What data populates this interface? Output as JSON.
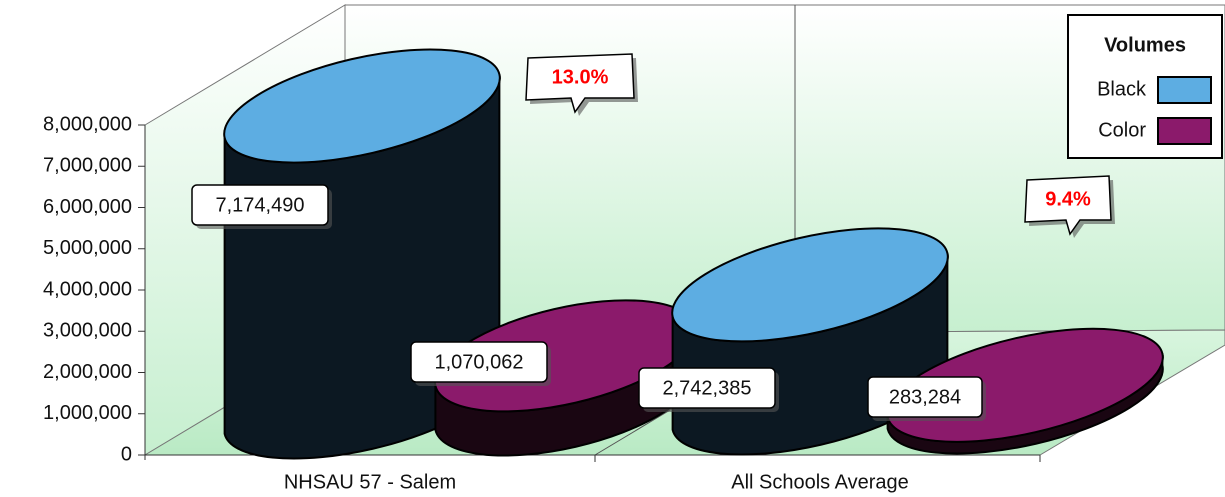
{
  "chart_data": {
    "type": "bar",
    "categories": [
      "NHSAU 57 - Salem",
      "All Schools Average"
    ],
    "series": [
      {
        "name": "Black",
        "color": "#5dade2",
        "values": [
          7174490,
          2742385
        ],
        "value_labels": [
          "7,174,490",
          "2,742,385"
        ]
      },
      {
        "name": "Color",
        "color": "#8b1a6b",
        "values": [
          1070062,
          283284
        ],
        "value_labels": [
          "1,070,062",
          "283,284"
        ]
      }
    ],
    "legend_title": "Volumes",
    "annotations": [
      "13.0%",
      "9.4%"
    ],
    "ylim": [
      0,
      8000000
    ],
    "yticks": [
      {
        "value": 0,
        "label": "0"
      },
      {
        "value": 1000000,
        "label": "1,000,000"
      },
      {
        "value": 2000000,
        "label": "2,000,000"
      },
      {
        "value": 3000000,
        "label": "3,000,000"
      },
      {
        "value": 4000000,
        "label": "4,000,000"
      },
      {
        "value": 5000000,
        "label": "5,000,000"
      },
      {
        "value": 6000000,
        "label": "6,000,000"
      },
      {
        "value": 7000000,
        "label": "7,000,000"
      },
      {
        "value": 8000000,
        "label": "8,000,000"
      }
    ],
    "legend_position": "upper right"
  }
}
